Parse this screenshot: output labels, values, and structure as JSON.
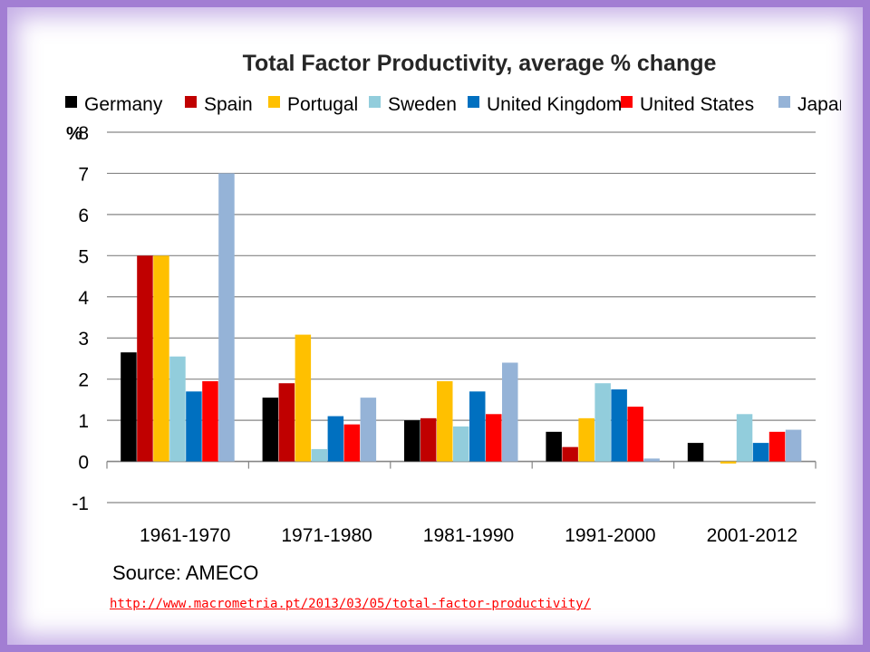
{
  "chart_data": {
    "type": "bar",
    "title": "Total Factor Productivity, average % change",
    "ylabel": "%",
    "source": "Source: AMECO",
    "categories": [
      "1961-1970",
      "1971-1980",
      "1981-1990",
      "1991-2000",
      "2001-2012"
    ],
    "ylim": [
      -1,
      8
    ],
    "yticks": [
      -1,
      0,
      1,
      2,
      3,
      4,
      5,
      6,
      7,
      8
    ],
    "grid": true,
    "legend_position": "top",
    "series": [
      {
        "name": "Germany",
        "color": "#000000",
        "values": [
          2.65,
          1.55,
          1.0,
          0.72,
          0.45
        ]
      },
      {
        "name": "Spain",
        "color": "#c00000",
        "values": [
          5.0,
          1.9,
          1.05,
          0.35,
          0.0
        ]
      },
      {
        "name": "Portugal",
        "color": "#ffc000",
        "values": [
          5.0,
          3.08,
          1.95,
          1.05,
          -0.05
        ]
      },
      {
        "name": "Sweden",
        "color": "#92cddc",
        "values": [
          2.55,
          0.3,
          0.85,
          1.9,
          1.15
        ]
      },
      {
        "name": "United Kingdom",
        "color": "#0070c0",
        "values": [
          1.7,
          1.1,
          1.7,
          1.75,
          0.45
        ]
      },
      {
        "name": "United States",
        "color": "#ff0000",
        "values": [
          1.95,
          0.9,
          1.15,
          1.33,
          0.72
        ]
      },
      {
        "name": "Japan",
        "color": "#95b3d7",
        "values": [
          7.0,
          1.55,
          2.4,
          0.07,
          0.77
        ]
      }
    ]
  },
  "footer": {
    "link": "http://www.macrometria.pt/2013/03/05/total-factor-productivity/"
  },
  "colors": {
    "frame": "#a27ed3",
    "gridline": "#868686"
  }
}
